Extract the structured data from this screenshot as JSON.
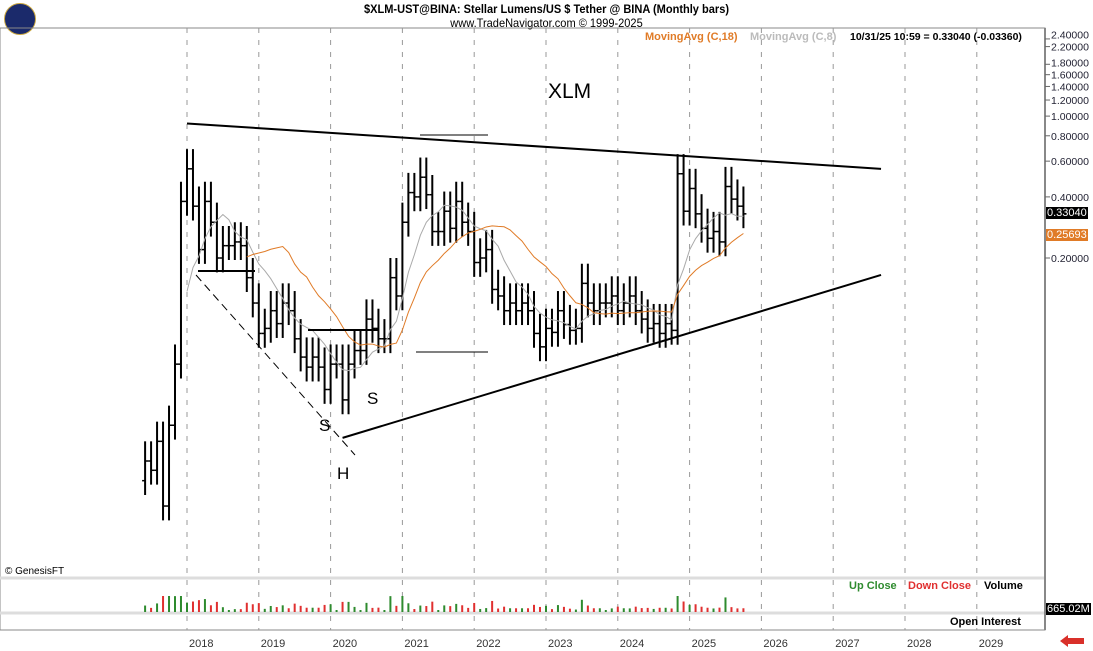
{
  "header": {
    "title": "$XLM-UST@BINA:  Stellar Lumens/US $ Tether @ BINA  (Monthly bars)",
    "subtitle": "www.TradeNavigator.com © 1999-2025",
    "ma18_label": "MovingAvg (C,18)",
    "ma8_label": "MovingAvg (C,8)",
    "quote": "10/31/25 10:59 = 0.33040 (-0.03360)"
  },
  "copyright": "© GenesisFT",
  "lower": {
    "up_close": "Up Close",
    "down_close": "Down Close",
    "volume": "Volume",
    "volume_value": "665.02M",
    "open_interest": "Open Interest"
  },
  "colors": {
    "ma18": "#e07b27",
    "ma8": "#aaaaaa",
    "up": "#2e8b2e",
    "down": "#e03030",
    "last_bg": "#000000",
    "ma_bg": "#e07b27"
  },
  "chart_data": {
    "type": "bar",
    "scale": "log",
    "ylim": [
      0.005,
      2.5
    ],
    "yticks": [
      "2.40000",
      "2.20000",
      "1.80000",
      "1.60000",
      "1.40000",
      "1.20000",
      "1.00000",
      "0.80000",
      "0.60000",
      "0.40000",
      "0.20000"
    ],
    "ytick_values": [
      2.4,
      2.2,
      1.8,
      1.6,
      1.4,
      1.2,
      1.0,
      0.8,
      0.6,
      0.4,
      0.2
    ],
    "last_price": "0.33040",
    "ma_value": "0.25693",
    "xticks": [
      "2018",
      "2019",
      "2020",
      "2021",
      "2022",
      "2023",
      "2024",
      "2025",
      "2026",
      "2027",
      "2028",
      "2029"
    ],
    "start_month": "2017-06",
    "close": [
      0.02,
      0.018,
      0.025,
      0.012,
      0.03,
      0.06,
      0.38,
      0.55,
      0.36,
      0.22,
      0.38,
      0.3,
      0.2,
      0.23,
      0.23,
      0.24,
      0.23,
      0.16,
      0.12,
      0.085,
      0.09,
      0.11,
      0.095,
      0.12,
      0.11,
      0.08,
      0.065,
      0.058,
      0.065,
      0.058,
      0.045,
      0.06,
      0.06,
      0.04,
      0.06,
      0.07,
      0.07,
      0.1,
      0.09,
      0.08,
      0.08,
      0.16,
      0.13,
      0.3,
      0.42,
      0.4,
      0.5,
      0.41,
      0.27,
      0.27,
      0.34,
      0.28,
      0.38,
      0.3,
      0.27,
      0.19,
      0.2,
      0.22,
      0.14,
      0.13,
      0.11,
      0.12,
      0.11,
      0.12,
      0.11,
      0.085,
      0.073,
      0.09,
      0.086,
      0.11,
      0.094,
      0.088,
      0.09,
      0.15,
      0.12,
      0.11,
      0.12,
      0.12,
      0.13,
      0.11,
      0.12,
      0.13,
      0.11,
      0.1,
      0.09,
      0.095,
      0.085,
      0.095,
      0.088,
      0.52,
      0.34,
      0.44,
      0.33,
      0.28,
      0.25,
      0.27,
      0.24,
      0.45,
      0.39,
      0.36,
      0.33
    ],
    "annotations": {
      "label": "XLM",
      "head_shoulders": [
        "S",
        "H",
        "S"
      ],
      "upper_trendline": [
        [
          "2018-01",
          0.92
        ],
        [
          "2027-09",
          0.55
        ]
      ],
      "lower_trendline": [
        [
          "2020-03",
          0.026
        ],
        [
          "2027-09",
          0.165
        ]
      ]
    }
  }
}
